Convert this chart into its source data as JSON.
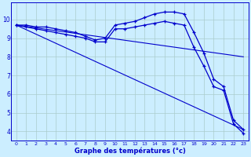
{
  "xlabel": "Graphe des températures (°c)",
  "background_color": "#cceeff",
  "grid_color": "#aacccc",
  "line_color": "#0000cc",
  "x_ticks": [
    0,
    1,
    2,
    3,
    4,
    5,
    6,
    7,
    8,
    9,
    10,
    11,
    12,
    13,
    14,
    15,
    16,
    17,
    18,
    19,
    20,
    21,
    22,
    23
  ],
  "ylim": [
    3.5,
    10.9
  ],
  "xlim": [
    -0.5,
    23.5
  ],
  "series1_x": [
    0,
    1,
    2,
    3,
    4,
    5,
    6,
    7,
    8,
    9,
    10,
    11,
    12,
    13,
    14,
    15,
    16,
    17,
    18,
    19,
    20,
    21,
    22,
    23
  ],
  "series1_y": [
    9.7,
    9.7,
    9.6,
    9.6,
    9.5,
    9.4,
    9.3,
    9.1,
    8.9,
    9.0,
    9.7,
    9.8,
    9.9,
    10.1,
    10.3,
    10.4,
    10.4,
    10.3,
    9.3,
    8.2,
    6.8,
    6.4,
    4.6,
    4.1
  ],
  "series2_x": [
    0,
    1,
    2,
    3,
    4,
    5,
    6,
    7,
    8,
    9,
    10,
    11,
    12,
    13,
    14,
    15,
    16,
    17,
    18,
    19,
    20,
    21,
    22,
    23
  ],
  "series2_y": [
    9.7,
    9.6,
    9.5,
    9.4,
    9.3,
    9.2,
    9.1,
    9.0,
    8.8,
    8.8,
    9.5,
    9.5,
    9.6,
    9.7,
    9.8,
    9.9,
    9.8,
    9.7,
    8.5,
    7.5,
    6.4,
    6.2,
    4.4,
    3.9
  ],
  "trend1_x": [
    0,
    23
  ],
  "trend1_y": [
    9.7,
    4.1
  ],
  "trend2_x": [
    0,
    23
  ],
  "trend2_y": [
    9.7,
    8.0
  ],
  "yticks": [
    4,
    5,
    6,
    7,
    8,
    9,
    10
  ],
  "ytick_labels": [
    "4",
    "5",
    "6",
    "7",
    "8",
    "9",
    "10"
  ]
}
